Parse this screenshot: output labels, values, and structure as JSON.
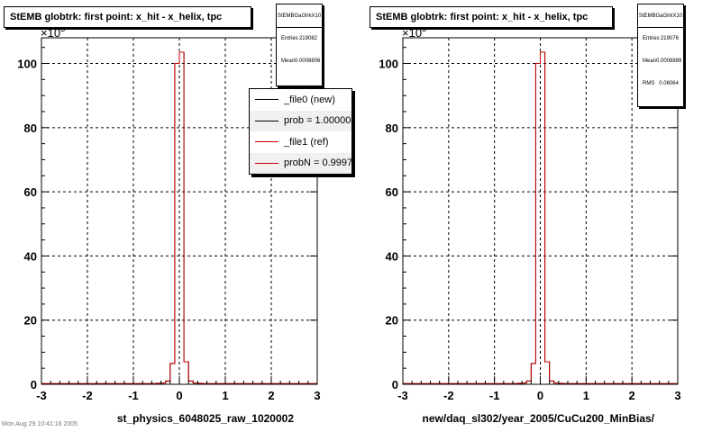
{
  "colors": {
    "file0": "#000000",
    "file1": "#cc0000",
    "frame": "#000000",
    "grid": "#000000"
  },
  "footer_text": "Mon Aug 29 10:41:16 2005",
  "panels": [
    {
      "title": "StEMB globtrk: first point: x_hit - x_helix, tpc",
      "xlabel": "st_physics_6048025_raw_1020002",
      "exponent_label": "×10",
      "exponent_power": "3",
      "stats": {
        "name": "StEMBGaGlrkX10",
        "rows": [
          {
            "label": "Entries",
            "value": "219082"
          },
          {
            "label": "Mean",
            "value": "0.0008806"
          }
        ]
      },
      "legend": {
        "entries": [
          {
            "label": "_file0 (new)",
            "series": "file0"
          },
          {
            "label": "prob = 1.000000",
            "series": "file0"
          },
          {
            "label": "_file1 (ref)",
            "series": "file1"
          },
          {
            "label": "probN = 0.999786",
            "series": "file1"
          }
        ]
      }
    },
    {
      "title": "StEMB globtrk: first point: x_hit - x_helix, tpc",
      "xlabel": "new/daq_sl302/year_2005/CuCu200_MinBias/",
      "exponent_label": "×10",
      "exponent_power": "3",
      "stats": {
        "name": "StEMBGaGlrkX10",
        "rows": [
          {
            "label": "Entries",
            "value": "219076"
          },
          {
            "label": "Mean",
            "value": "0.0008889"
          },
          {
            "label": "RMS",
            "value": "0.06064"
          }
        ]
      }
    }
  ],
  "chart_data": [
    {
      "type": "step-histogram",
      "title": "StEMB globtrk: first point: x_hit - x_helix, tpc",
      "xlabel": "st_physics_6048025_raw_1020002",
      "ylabel": "",
      "xlim": [
        -3,
        3
      ],
      "ylim": [
        0,
        108
      ],
      "y_scale_factor": 1000,
      "x_ticks": [
        -3,
        -2,
        -1,
        0,
        1,
        2,
        3
      ],
      "y_ticks": [
        0,
        20,
        40,
        60,
        80,
        100
      ],
      "grid": true,
      "legend_position": "top-right",
      "bin_edges": [
        -3,
        -2.9,
        -2.8,
        -2.7,
        -2.6,
        -2.5,
        -2.4,
        -2.3,
        -2.2,
        -2.1,
        -2,
        -1.9,
        -1.8,
        -1.7,
        -1.6,
        -1.5,
        -1.4,
        -1.3,
        -1.2,
        -1.1,
        -1,
        -0.9,
        -0.8,
        -0.7,
        -0.6,
        -0.5,
        -0.4,
        -0.3,
        -0.2,
        -0.1,
        0,
        0.1,
        0.2,
        0.3,
        0.4,
        0.5,
        0.6,
        0.7,
        0.8,
        0.9,
        1,
        1.1,
        1.2,
        1.3,
        1.4,
        1.5,
        1.6,
        1.7,
        1.8,
        1.9,
        2,
        2.1,
        2.2,
        2.3,
        2.4,
        2.5,
        2.6,
        2.7,
        2.8,
        2.9,
        3
      ],
      "series": [
        {
          "name": "_file0 (new)",
          "color": "#000000",
          "values": [
            0.2,
            0.2,
            0.2,
            0.2,
            0.2,
            0.2,
            0.2,
            0.2,
            0.2,
            0.2,
            0.2,
            0.2,
            0.2,
            0.2,
            0.2,
            0.2,
            0.2,
            0.2,
            0.2,
            0.2,
            0.2,
            0.2,
            0.2,
            0.2,
            0.2,
            0.3,
            0.4,
            1,
            6.5,
            100,
            103.5,
            7,
            1,
            0.4,
            0.3,
            0.2,
            0.2,
            0.2,
            0.2,
            0.2,
            0.2,
            0.2,
            0.2,
            0.2,
            0.2,
            0.2,
            0.2,
            0.2,
            0.2,
            0.2,
            0.2,
            0.2,
            0.2,
            0.2,
            0.2,
            0.2,
            0.2,
            0.2,
            0.2,
            0.2
          ]
        },
        {
          "name": "_file1 (ref)",
          "color": "#cc0000",
          "values": [
            0.2,
            0.2,
            0.2,
            0.2,
            0.2,
            0.2,
            0.2,
            0.2,
            0.2,
            0.2,
            0.2,
            0.2,
            0.2,
            0.2,
            0.2,
            0.2,
            0.2,
            0.2,
            0.2,
            0.2,
            0.2,
            0.2,
            0.2,
            0.2,
            0.2,
            0.3,
            0.4,
            1,
            6.5,
            100,
            103.5,
            7,
            1,
            0.4,
            0.3,
            0.2,
            0.2,
            0.2,
            0.2,
            0.2,
            0.2,
            0.2,
            0.2,
            0.2,
            0.2,
            0.2,
            0.2,
            0.2,
            0.2,
            0.2,
            0.2,
            0.2,
            0.2,
            0.2,
            0.2,
            0.2,
            0.2,
            0.2,
            0.2,
            0.2
          ]
        }
      ]
    },
    {
      "type": "step-histogram",
      "title": "StEMB globtrk: first point: x_hit - x_helix, tpc",
      "xlabel": "new/daq_sl302/year_2005/CuCu200_MinBias/",
      "ylabel": "",
      "xlim": [
        -3,
        3
      ],
      "ylim": [
        0,
        108
      ],
      "y_scale_factor": 1000,
      "x_ticks": [
        -3,
        -2,
        -1,
        0,
        1,
        2,
        3
      ],
      "y_ticks": [
        0,
        20,
        40,
        60,
        80,
        100
      ],
      "grid": true,
      "bin_edges": [
        -3,
        -2.9,
        -2.8,
        -2.7,
        -2.6,
        -2.5,
        -2.4,
        -2.3,
        -2.2,
        -2.1,
        -2,
        -1.9,
        -1.8,
        -1.7,
        -1.6,
        -1.5,
        -1.4,
        -1.3,
        -1.2,
        -1.1,
        -1,
        -0.9,
        -0.8,
        -0.7,
        -0.6,
        -0.5,
        -0.4,
        -0.3,
        -0.2,
        -0.1,
        0,
        0.1,
        0.2,
        0.3,
        0.4,
        0.5,
        0.6,
        0.7,
        0.8,
        0.9,
        1,
        1.1,
        1.2,
        1.3,
        1.4,
        1.5,
        1.6,
        1.7,
        1.8,
        1.9,
        2,
        2.1,
        2.2,
        2.3,
        2.4,
        2.5,
        2.6,
        2.7,
        2.8,
        2.9,
        3
      ],
      "series": [
        {
          "color": "#000000",
          "values": [
            0.2,
            0.2,
            0.2,
            0.2,
            0.2,
            0.2,
            0.2,
            0.2,
            0.2,
            0.2,
            0.2,
            0.2,
            0.2,
            0.2,
            0.2,
            0.2,
            0.2,
            0.2,
            0.2,
            0.2,
            0.2,
            0.2,
            0.2,
            0.2,
            0.2,
            0.3,
            0.4,
            1,
            6.5,
            100,
            103.5,
            7,
            1,
            0.4,
            0.3,
            0.2,
            0.2,
            0.2,
            0.2,
            0.2,
            0.2,
            0.2,
            0.2,
            0.2,
            0.2,
            0.2,
            0.2,
            0.2,
            0.2,
            0.2,
            0.2,
            0.2,
            0.2,
            0.2,
            0.2,
            0.2,
            0.2,
            0.2,
            0.2,
            0.2
          ]
        },
        {
          "color": "#cc0000",
          "values": [
            0.2,
            0.2,
            0.2,
            0.2,
            0.2,
            0.2,
            0.2,
            0.2,
            0.2,
            0.2,
            0.2,
            0.2,
            0.2,
            0.2,
            0.2,
            0.2,
            0.2,
            0.2,
            0.2,
            0.2,
            0.2,
            0.2,
            0.2,
            0.2,
            0.2,
            0.3,
            0.4,
            1,
            6.5,
            100,
            103.5,
            7,
            1,
            0.4,
            0.3,
            0.2,
            0.2,
            0.2,
            0.2,
            0.2,
            0.2,
            0.2,
            0.2,
            0.2,
            0.2,
            0.2,
            0.2,
            0.2,
            0.2,
            0.2,
            0.2,
            0.2,
            0.2,
            0.2,
            0.2,
            0.2,
            0.2,
            0.2,
            0.2,
            0.2
          ]
        }
      ]
    }
  ]
}
